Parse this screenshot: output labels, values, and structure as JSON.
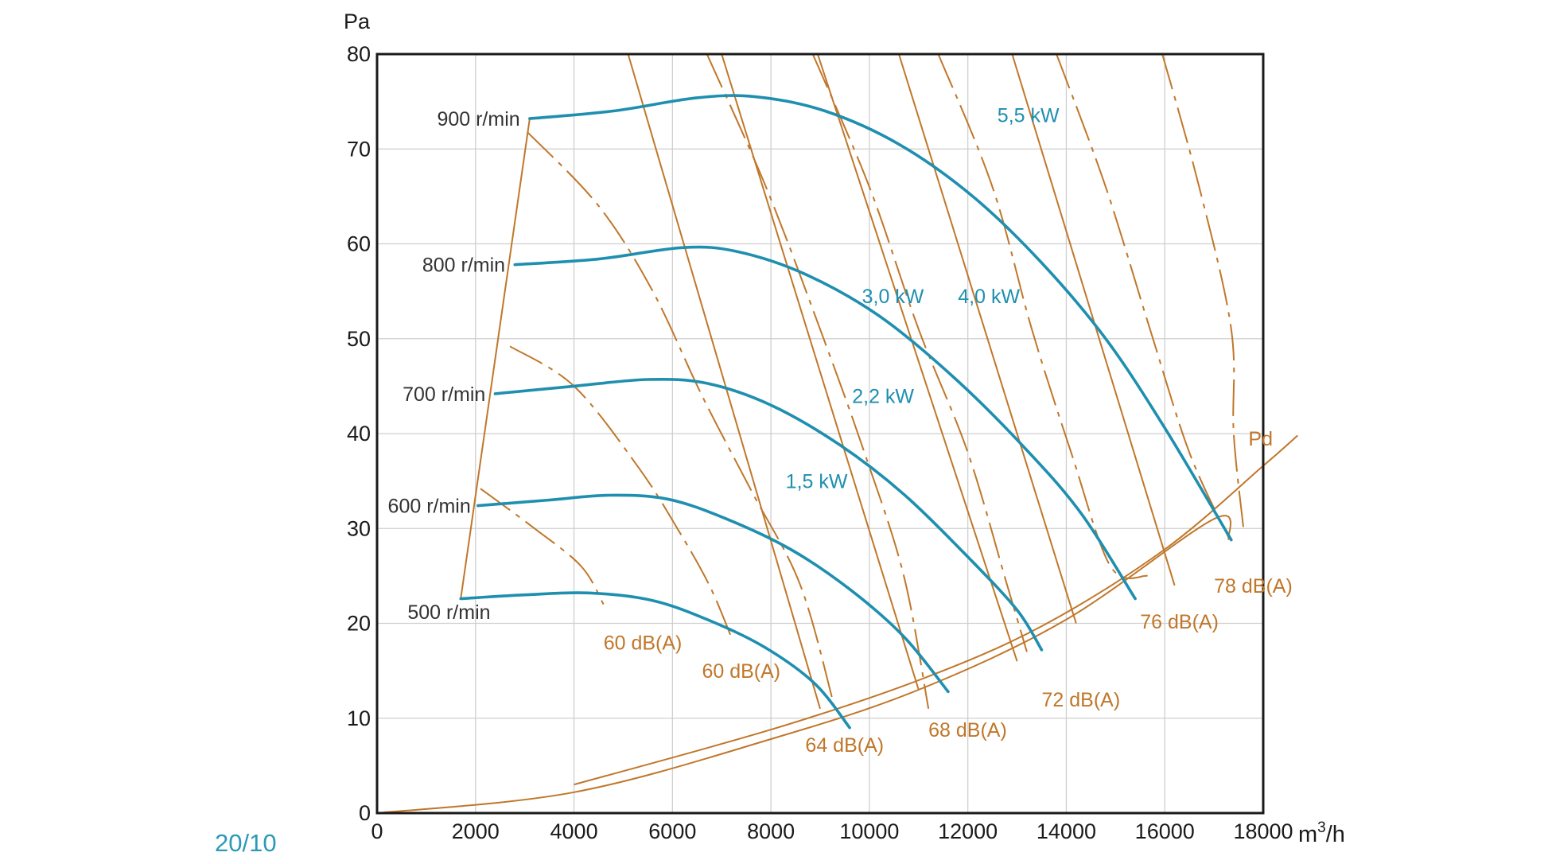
{
  "caption": "20/10",
  "colors": {
    "fan_curve": "#1f8fb0",
    "aux_line": "#c0772a",
    "grid": "#cfcfcf",
    "frame": "#1a1a1a",
    "text": "#333333"
  },
  "chart_data": {
    "type": "line",
    "title": "",
    "xlabel": "m³/h",
    "ylabel": "Pa",
    "xlim": [
      0,
      18000
    ],
    "ylim": [
      0,
      80
    ],
    "x_ticks": [
      "0",
      "2000",
      "4000",
      "6000",
      "8000",
      "10000",
      "12000",
      "14000",
      "16000",
      "18000"
    ],
    "y_ticks": [
      "0",
      "10",
      "20",
      "30",
      "40",
      "50",
      "60",
      "70",
      "80"
    ],
    "grid": true,
    "fan_curves": [
      {
        "name": "500 r/min",
        "points": [
          [
            1700,
            22.6
          ],
          [
            3000,
            23.0
          ],
          [
            4300,
            23.2
          ],
          [
            5600,
            22.4
          ],
          [
            6800,
            20.2
          ],
          [
            7900,
            17.4
          ],
          [
            8900,
            13.6
          ],
          [
            9600,
            9.0
          ]
        ]
      },
      {
        "name": "600 r/min",
        "points": [
          [
            2050,
            32.4
          ],
          [
            3500,
            33.0
          ],
          [
            4700,
            33.5
          ],
          [
            5900,
            33.1
          ],
          [
            7100,
            31.0
          ],
          [
            8400,
            27.8
          ],
          [
            9600,
            23.6
          ],
          [
            10700,
            18.6
          ],
          [
            11600,
            12.8
          ]
        ]
      },
      {
        "name": "700 r/min",
        "points": [
          [
            2400,
            44.2
          ],
          [
            4000,
            45.0
          ],
          [
            5500,
            45.7
          ],
          [
            6700,
            45.3
          ],
          [
            8000,
            43.0
          ],
          [
            9400,
            38.8
          ],
          [
            10700,
            33.6
          ],
          [
            12000,
            27.0
          ],
          [
            13000,
            21.4
          ],
          [
            13500,
            17.2
          ]
        ]
      },
      {
        "name": "800 r/min",
        "points": [
          [
            2800,
            57.8
          ],
          [
            4500,
            58.4
          ],
          [
            6200,
            59.6
          ],
          [
            7300,
            59.2
          ],
          [
            8700,
            56.8
          ],
          [
            10200,
            52.4
          ],
          [
            11700,
            46.0
          ],
          [
            13100,
            38.8
          ],
          [
            14300,
            31.6
          ],
          [
            15400,
            22.6
          ]
        ]
      },
      {
        "name": "900 r/min",
        "points": [
          [
            3100,
            73.2
          ],
          [
            4800,
            74.0
          ],
          [
            6500,
            75.4
          ],
          [
            7700,
            75.5
          ],
          [
            9100,
            74.0
          ],
          [
            10600,
            70.5
          ],
          [
            12100,
            65.0
          ],
          [
            13500,
            58.0
          ],
          [
            14800,
            50.0
          ],
          [
            16000,
            40.6
          ],
          [
            17350,
            28.8
          ]
        ]
      }
    ],
    "limit_lines": [
      {
        "name": "start",
        "points": [
          [
            1700,
            22.6
          ],
          [
            3100,
            73.2
          ]
        ]
      },
      {
        "name": "Pd",
        "points": [
          [
            0,
            0
          ],
          [
            4000,
            2.2
          ],
          [
            8000,
            7.8
          ],
          [
            11000,
            13.0
          ],
          [
            14000,
            20.4
          ],
          [
            17000,
            31.0
          ],
          [
            17300,
            28.8
          ]
        ]
      },
      {
        "name": "Pd_upper",
        "points": [
          [
            4000,
            3.0
          ],
          [
            8000,
            8.8
          ],
          [
            11000,
            14.0
          ],
          [
            13500,
            19.7
          ],
          [
            16000,
            27.8
          ],
          [
            18000,
            36.6
          ],
          [
            18700,
            39.8
          ]
        ]
      }
    ],
    "power_lines": [
      {
        "name": "1,5 kW",
        "points": [
          [
            5100,
            80
          ],
          [
            9000,
            11
          ]
        ]
      },
      {
        "name": "2,2 kW",
        "points": [
          [
            7000,
            80
          ],
          [
            11000,
            13
          ]
        ]
      },
      {
        "name": "3,0 kW",
        "points": [
          [
            8950,
            80
          ],
          [
            13000,
            16
          ]
        ]
      },
      {
        "name": "4,0 kW",
        "points": [
          [
            10600,
            80
          ],
          [
            14200,
            20
          ]
        ]
      },
      {
        "name": "5,5 kW",
        "points": [
          [
            12900,
            80
          ],
          [
            16200,
            24
          ]
        ]
      }
    ],
    "sound_lines": [
      {
        "name": "60 dB(A)",
        "points": [
          [
            3050,
            71.8
          ],
          [
            4500,
            64.0
          ],
          [
            5600,
            55.0
          ],
          [
            6600,
            44.0
          ],
          [
            7600,
            34.0
          ],
          [
            8600,
            24.0
          ],
          [
            9300,
            11.0
          ]
        ]
      },
      {
        "name": "60 dB(A)",
        "points": [
          [
            2700,
            49.2
          ],
          [
            4000,
            45.0
          ],
          [
            5300,
            36.5
          ],
          [
            6100,
            30.0
          ],
          [
            6750,
            24.0
          ],
          [
            7200,
            18.5
          ]
        ]
      },
      {
        "name": "60 dB(A)",
        "points": [
          [
            2100,
            34.2
          ],
          [
            3200,
            30.0
          ],
          [
            4150,
            26.0
          ],
          [
            4600,
            22.0
          ]
        ]
      },
      {
        "name": "64 dB(A)",
        "points": [
          [
            6700,
            80
          ],
          [
            7900,
            66.0
          ],
          [
            9000,
            51.0
          ],
          [
            9900,
            38.0
          ],
          [
            10700,
            25.0
          ],
          [
            11200,
            11.0
          ]
        ]
      },
      {
        "name": "68 dB(A)",
        "points": [
          [
            8850,
            80
          ],
          [
            10000,
            66.0
          ],
          [
            11000,
            51.0
          ],
          [
            12000,
            38.0
          ],
          [
            12800,
            24.0
          ],
          [
            13200,
            17.0
          ]
        ]
      },
      {
        "name": "72 dB(A)",
        "points": [
          [
            11400,
            80
          ],
          [
            12500,
            66.0
          ],
          [
            13300,
            51.0
          ],
          [
            14100,
            38.0
          ],
          [
            14900,
            26.0
          ],
          [
            15650,
            25.0
          ]
        ]
      },
      {
        "name": "76 dB(A)",
        "points": [
          [
            13800,
            80
          ],
          [
            14800,
            66.0
          ],
          [
            15700,
            51.0
          ],
          [
            16500,
            38.0
          ],
          [
            17300,
            29.0
          ]
        ]
      },
      {
        "name": "78 dB(A)",
        "points": [
          [
            15950,
            80
          ],
          [
            16700,
            66.0
          ],
          [
            17350,
            51.0
          ],
          [
            17400,
            40.0
          ],
          [
            17600,
            30.0
          ]
        ]
      }
    ],
    "curve_labels": [
      {
        "text": "900 r/min",
        "x": 3000,
        "y": 73.2,
        "group": "rpm"
      },
      {
        "text": "800 r/min",
        "x": 2700,
        "y": 57.8,
        "group": "rpm"
      },
      {
        "text": "700 r/min",
        "x": 2300,
        "y": 44.2,
        "group": "rpm"
      },
      {
        "text": "600 r/min",
        "x": 2000,
        "y": 32.4,
        "group": "rpm"
      },
      {
        "text": "500 r/min",
        "x": 2400,
        "y": 21.2,
        "group": "rpm"
      },
      {
        "text": "5,5 kW",
        "x": 12600,
        "y": 73.6,
        "group": "kw"
      },
      {
        "text": "3,0 kW",
        "x": 9850,
        "y": 54.5,
        "group": "kw"
      },
      {
        "text": "4,0 kW",
        "x": 11800,
        "y": 54.5,
        "group": "kw"
      },
      {
        "text": "2,2 kW",
        "x": 9650,
        "y": 44.0,
        "group": "kw"
      },
      {
        "text": "1,5 kW",
        "x": 8300,
        "y": 35.0,
        "group": "kw"
      },
      {
        "text": "Pd",
        "x": 17700,
        "y": 39.5,
        "group": "db"
      },
      {
        "text": "78 dB(A)",
        "x": 17000,
        "y": 24.0,
        "group": "db"
      },
      {
        "text": "76 dB(A)",
        "x": 15500,
        "y": 20.2,
        "group": "db"
      },
      {
        "text": "72 dB(A)",
        "x": 13500,
        "y": 12.0,
        "group": "db"
      },
      {
        "text": "68 dB(A)",
        "x": 11200,
        "y": 8.8,
        "group": "db"
      },
      {
        "text": "64 dB(A)",
        "x": 8700,
        "y": 7.2,
        "group": "db"
      },
      {
        "text": "60 dB(A)",
        "x": 6600,
        "y": 15.0,
        "group": "db"
      },
      {
        "text": "60 dB(A)",
        "x": 4600,
        "y": 18.0,
        "group": "db"
      }
    ]
  }
}
